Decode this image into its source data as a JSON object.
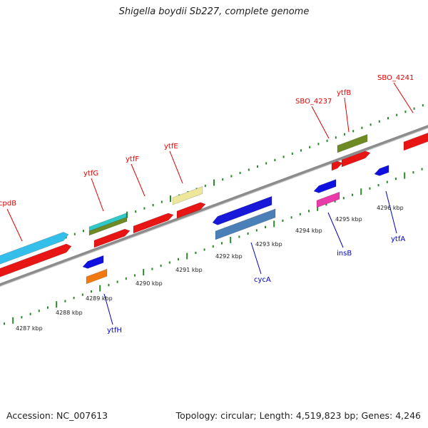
{
  "title": "Shigella boydii Sb227, complete genome",
  "footer": {
    "accession": "Accession: NC_007613",
    "stats": "Topology: circular; Length: 4,519,823 bp; Genes: 4,246"
  },
  "colors": {
    "backbone": "#8c8c8c",
    "forward_tick": "#2a8a2a",
    "reverse_tick": "#2a8a2a",
    "forward_label": "#e00000",
    "reverse_label": "#0000cc"
  },
  "ticks": [
    {
      "label": "4287 kbp"
    },
    {
      "label": "4288 kbp"
    },
    {
      "label": "4289 kbp"
    },
    {
      "label": "4290 kbp"
    },
    {
      "label": "4291 kbp"
    },
    {
      "label": "4292 kbp"
    },
    {
      "label": "4293 kbp"
    },
    {
      "label": "4294 kbp"
    },
    {
      "label": "4295 kbp"
    },
    {
      "label": "4296 kbp"
    }
  ],
  "forward_genes": [
    {
      "label": "cpdB"
    },
    {
      "label": "ytfG"
    },
    {
      "label": "ytfF"
    },
    {
      "label": "ytfE"
    },
    {
      "label": "SBO_4237"
    },
    {
      "label": "ytfB"
    },
    {
      "label": "SBO_4241"
    }
  ],
  "reverse_genes": [
    {
      "label": "ytfH"
    },
    {
      "label": "cycA"
    },
    {
      "label": "insB"
    },
    {
      "label": "ytfA"
    }
  ]
}
